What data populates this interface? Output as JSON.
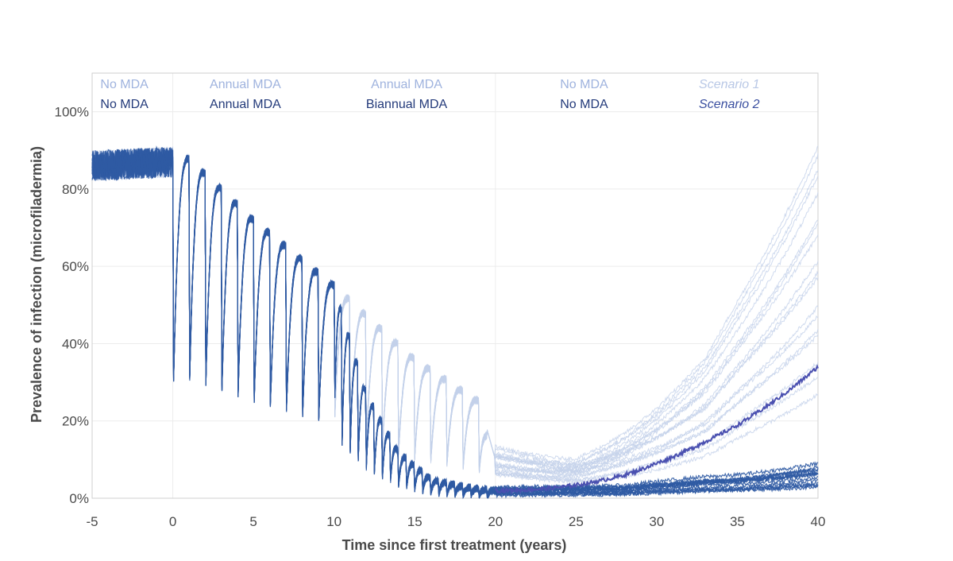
{
  "chart_data": {
    "type": "line",
    "title": "",
    "xlabel": "Time since first treatment (years)",
    "ylabel": "Prevalence of infection (microfiladermia)",
    "xlim": [
      -5,
      40
    ],
    "ylim": [
      0,
      1.1
    ],
    "x_ticks": [
      "-5",
      "0",
      "5",
      "10",
      "15",
      "20",
      "25",
      "30",
      "35",
      "40"
    ],
    "y_ticks": [
      {
        "value": 0,
        "label": "0%"
      },
      {
        "value": 0.2,
        "label": "20%"
      },
      {
        "value": 0.4,
        "label": "40%"
      },
      {
        "value": 0.6,
        "label": "60%"
      },
      {
        "value": 0.8,
        "label": "80%"
      },
      {
        "value": 1.0,
        "label": "100%"
      }
    ],
    "grid": true,
    "phase_dividers": [
      0,
      20
    ],
    "phase_labels": [
      {
        "x": -3,
        "scenario1": "No MDA",
        "scenario2": "No MDA"
      },
      {
        "x": 4.5,
        "scenario1": "Annual MDA",
        "scenario2": "Annual MDA"
      },
      {
        "x": 14.5,
        "scenario1": "Annual MDA",
        "scenario2": "Biannual MDA"
      },
      {
        "x": 25.5,
        "scenario1": "No MDA",
        "scenario2": "No MDA"
      }
    ],
    "legend": [
      {
        "x": 34.5,
        "label": "Scenario 1",
        "color": "#b9c8e6"
      },
      {
        "x": 34.5,
        "label": "Scenario 2",
        "color": "#3a4fa0"
      }
    ],
    "colors": {
      "scenario1_text": "#9fb3de",
      "scenario2_text": "#233a7a",
      "scenario1_line": "#c3d1ea",
      "scenario2_line": "#2f5aa3",
      "scenario2_mean": "#4a50b0",
      "grid": "#ececec",
      "axis": "#cfcfcf"
    },
    "series": [
      {
        "scenario": "Scenario 1",
        "x": [
          -5,
          0,
          1,
          5,
          10,
          15,
          19,
          20,
          25,
          28,
          30,
          33,
          35,
          38,
          40
        ],
        "y": [
          0.86,
          0.87,
          0.88,
          0.72,
          0.55,
          0.36,
          0.25,
          0.1,
          0.06,
          0.08,
          0.1,
          0.14,
          0.2,
          0.28,
          0.34
        ]
      },
      {
        "scenario": "Scenario 2",
        "x": [
          -5,
          0,
          1,
          5,
          10,
          12,
          14,
          16,
          18,
          20,
          25,
          28,
          30,
          33,
          35,
          38,
          40
        ],
        "y": [
          0.86,
          0.87,
          0.88,
          0.72,
          0.55,
          0.27,
          0.12,
          0.05,
          0.03,
          0.02,
          0.02,
          0.02,
          0.025,
          0.03,
          0.03,
          0.035,
          0.04
        ]
      }
    ]
  }
}
